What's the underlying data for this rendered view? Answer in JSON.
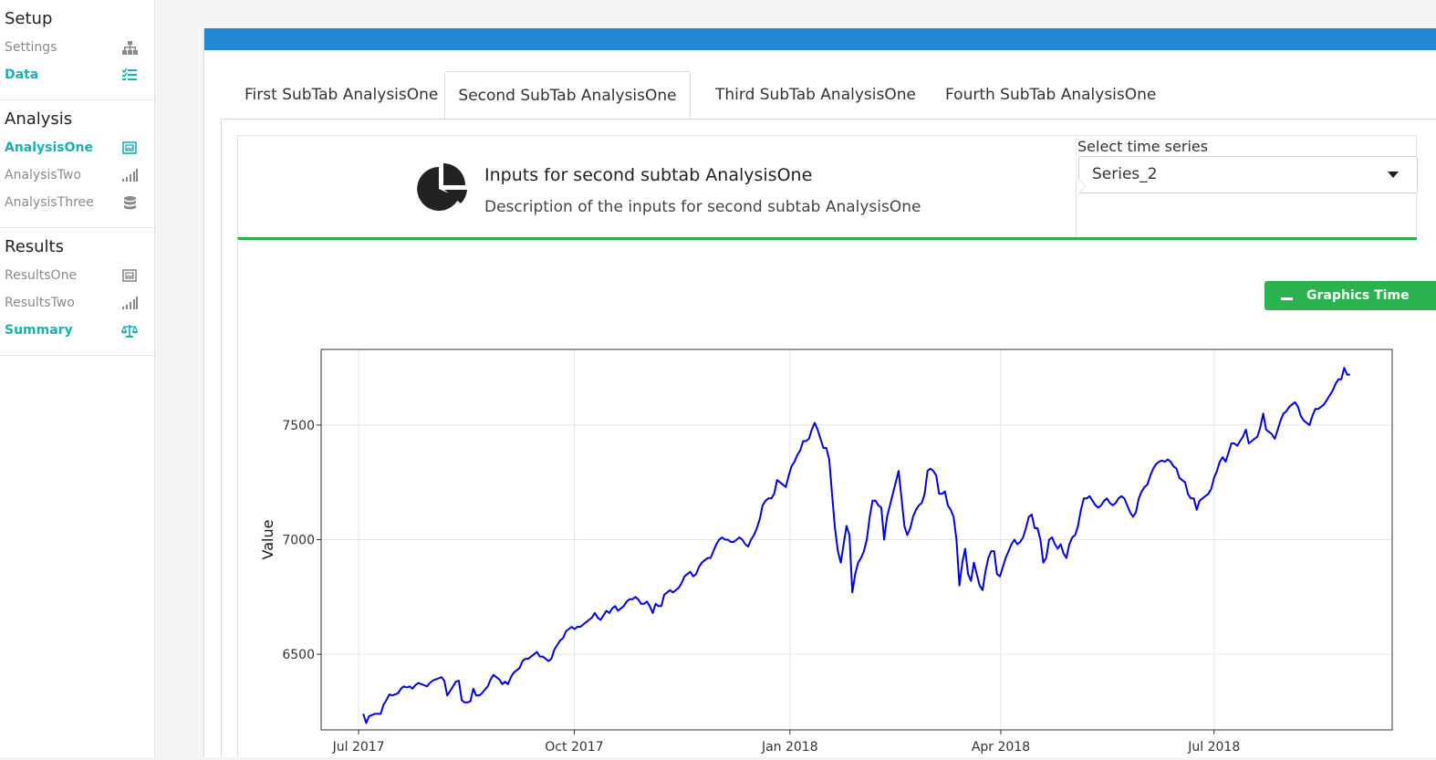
{
  "sidebar": {
    "sections": [
      {
        "title": "Setup",
        "items": [
          {
            "label": "Settings",
            "icon": "sitemap-icon",
            "active": false
          },
          {
            "label": "Data",
            "icon": "list-check-icon",
            "active": true
          }
        ]
      },
      {
        "title": "Analysis",
        "items": [
          {
            "label": "AnalysisOne",
            "icon": "image-frame-icon",
            "active": true
          },
          {
            "label": "AnalysisTwo",
            "icon": "signal-bars-icon",
            "active": false
          },
          {
            "label": "AnalysisThree",
            "icon": "database-icon",
            "active": false
          }
        ]
      },
      {
        "title": "Results",
        "items": [
          {
            "label": "ResultsOne",
            "icon": "image-frame-icon",
            "active": false
          },
          {
            "label": "ResultsTwo",
            "icon": "signal-bars-icon",
            "active": false
          },
          {
            "label": "Summary",
            "icon": "balance-scale-icon",
            "active": true
          }
        ]
      }
    ]
  },
  "tabs": [
    {
      "label": "First SubTab AnalysisOne",
      "active": false
    },
    {
      "label": "Second SubTab AnalysisOne",
      "active": true
    },
    {
      "label": "Third SubTab AnalysisOne",
      "active": false
    },
    {
      "label": "Fourth SubTab AnalysisOne",
      "active": false
    }
  ],
  "inputs": {
    "icon": "pie-chart-icon",
    "title": "Inputs for second subtab AnalysisOne",
    "description": "Description of the inputs for second subtab AnalysisOne",
    "select_label": "Select time series",
    "select_value": "Series_2"
  },
  "colors": {
    "accent_teal": "#17b1b5",
    "header_blue": "#2288d1",
    "box_green": "#2ab34c",
    "series_line": "#0000ee"
  },
  "graphics_box": {
    "label": "Graphics Time Series"
  },
  "chart_data": {
    "type": "line",
    "title": "",
    "xlabel": "",
    "ylabel": "Value",
    "x_start": "2017-07-03",
    "x_end": "2018-08-28",
    "xlim": [
      "2017-06-15",
      "2018-09-15"
    ],
    "ylim": [
      6170,
      7830
    ],
    "x_ticks": [
      {
        "date": "2017-07-01",
        "label": "Jul 2017"
      },
      {
        "date": "2017-10-01",
        "label": "Oct 2017"
      },
      {
        "date": "2018-01-01",
        "label": "Jan 2018"
      },
      {
        "date": "2018-04-01",
        "label": "Apr 2018"
      },
      {
        "date": "2018-07-01",
        "label": "Jul 2018"
      }
    ],
    "y_ticks": [
      6500,
      7000,
      7500
    ],
    "grid": true,
    "series": [
      {
        "values": [
          6240,
          6200,
          6230,
          6235,
          6240,
          6240,
          6240,
          6280,
          6300,
          6325,
          6320,
          6325,
          6330,
          6350,
          6360,
          6355,
          6360,
          6350,
          6365,
          6375,
          6370,
          6365,
          6360,
          6375,
          6385,
          6390,
          6395,
          6400,
          6385,
          6320,
          6340,
          6360,
          6380,
          6385,
          6300,
          6290,
          6290,
          6295,
          6350,
          6320,
          6320,
          6330,
          6345,
          6360,
          6390,
          6410,
          6400,
          6390,
          6370,
          6380,
          6370,
          6400,
          6420,
          6430,
          6440,
          6470,
          6480,
          6480,
          6490,
          6500,
          6510,
          6490,
          6490,
          6480,
          6470,
          6480,
          6520,
          6540,
          6560,
          6570,
          6600,
          6610,
          6620,
          6610,
          6620,
          6620,
          6630,
          6640,
          6650,
          6660,
          6680,
          6660,
          6650,
          6670,
          6690,
          6680,
          6700,
          6710,
          6690,
          6700,
          6710,
          6730,
          6740,
          6740,
          6750,
          6740,
          6720,
          6720,
          6730,
          6710,
          6680,
          6720,
          6710,
          6710,
          6760,
          6770,
          6780,
          6770,
          6780,
          6790,
          6810,
          6840,
          6850,
          6860,
          6840,
          6850,
          6880,
          6900,
          6910,
          6920,
          6920,
          6950,
          6980,
          7000,
          7010,
          7000,
          7000,
          6990,
          6990,
          7000,
          7010,
          7000,
          6980,
          6970,
          7000,
          7020,
          7050,
          7090,
          7150,
          7170,
          7180,
          7180,
          7200,
          7260,
          7250,
          7240,
          7230,
          7280,
          7320,
          7340,
          7370,
          7390,
          7430,
          7430,
          7440,
          7480,
          7510,
          7480,
          7440,
          7400,
          7400,
          7350,
          7200,
          7050,
          6950,
          6900,
          6980,
          7060,
          7020,
          6770,
          6850,
          6900,
          6920,
          6950,
          7000,
          7100,
          7170,
          7170,
          7150,
          7140,
          7000,
          7100,
          7150,
          7200,
          7250,
          7300,
          7180,
          7060,
          7020,
          7050,
          7100,
          7130,
          7150,
          7160,
          7200,
          7300,
          7310,
          7300,
          7280,
          7200,
          7200,
          7210,
          7150,
          7130,
          7100,
          7000,
          6800,
          6900,
          6960,
          6850,
          6820,
          6900,
          6850,
          6800,
          6780,
          6860,
          6920,
          6950,
          6950,
          6850,
          6840,
          6880,
          6920,
          6950,
          6980,
          7000,
          6980,
          6990,
          7010,
          7050,
          7100,
          7110,
          7050,
          7050,
          7000,
          6900,
          6920,
          7000,
          7010,
          6980,
          6960,
          6980,
          6940,
          6920,
          6980,
          7010,
          7020,
          7060,
          7130,
          7180,
          7180,
          7190,
          7170,
          7150,
          7140,
          7150,
          7170,
          7180,
          7160,
          7150,
          7160,
          7180,
          7190,
          7180,
          7150,
          7120,
          7100,
          7120,
          7180,
          7210,
          7230,
          7240,
          7280,
          7310,
          7330,
          7340,
          7345,
          7340,
          7350,
          7340,
          7320,
          7310,
          7270,
          7260,
          7250,
          7200,
          7180,
          7180,
          7130,
          7170,
          7180,
          7190,
          7200,
          7220,
          7270,
          7300,
          7340,
          7360,
          7340,
          7380,
          7420,
          7420,
          7410,
          7430,
          7450,
          7480,
          7420,
          7430,
          7440,
          7450,
          7490,
          7550,
          7480,
          7470,
          7460,
          7440,
          7480,
          7520,
          7550,
          7560,
          7580,
          7590,
          7600,
          7580,
          7540,
          7520,
          7510,
          7500,
          7540,
          7570,
          7570,
          7580,
          7590,
          7610,
          7630,
          7650,
          7680,
          7700,
          7700,
          7750,
          7720,
          7720
        ]
      }
    ]
  }
}
